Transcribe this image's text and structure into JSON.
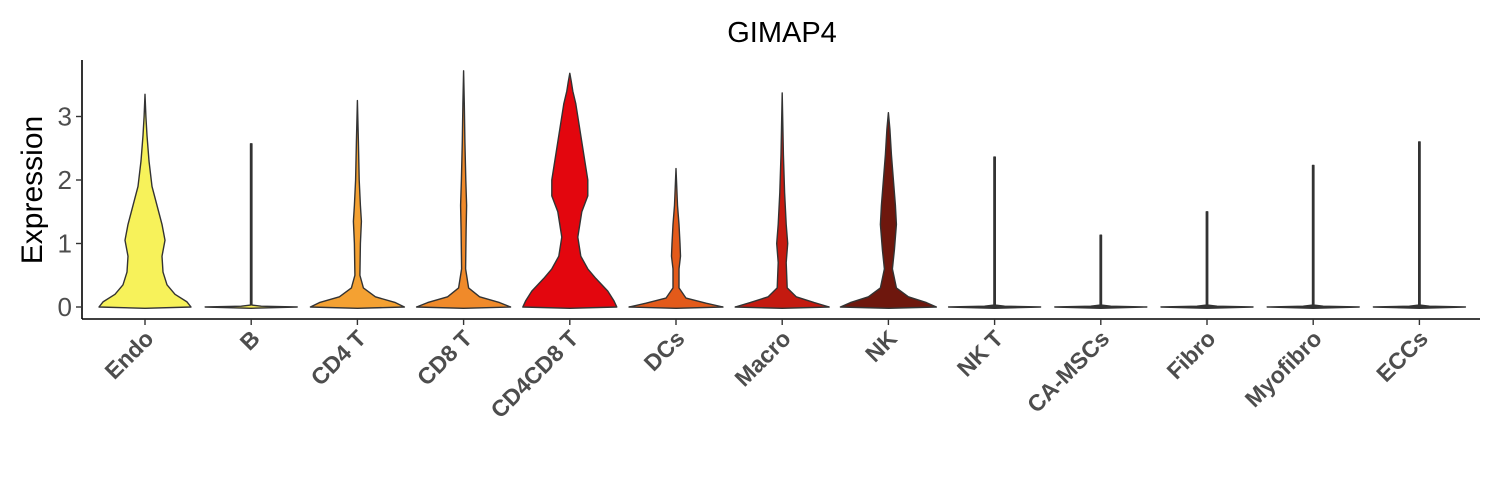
{
  "chart_data": {
    "type": "violin",
    "title": "GIMAP4",
    "xlabel": "",
    "ylabel": "Expression",
    "ylim": [
      -0.18,
      3.9
    ],
    "yticks": [
      "0",
      "1",
      "2",
      "3"
    ],
    "legend": "none",
    "grid": false,
    "categories": [
      "Endo",
      "B",
      "CD4 T",
      "CD8 T",
      "CD4CD8 T",
      "DCs",
      "Macro",
      "NK",
      "NK T",
      "CA-MSCs",
      "Fibro",
      "Myofibro",
      "ECCs"
    ],
    "colors": [
      "#F7F25A",
      "#F6EA55",
      "#F4A132",
      "#F08A2A",
      "#E3060E",
      "#E35A1A",
      "#C41A10",
      "#6E170D",
      "#333333",
      "#333333",
      "#333333",
      "#333333",
      "#333333"
    ],
    "max_values": [
      3.35,
      2.57,
      3.25,
      3.72,
      3.68,
      2.18,
      3.37,
      3.06,
      2.36,
      1.13,
      1.5,
      2.23,
      2.6
    ],
    "median_values": [
      1.05,
      0,
      0,
      0,
      1.7,
      0,
      0,
      0.9,
      0,
      0,
      0,
      0,
      0
    ]
  }
}
